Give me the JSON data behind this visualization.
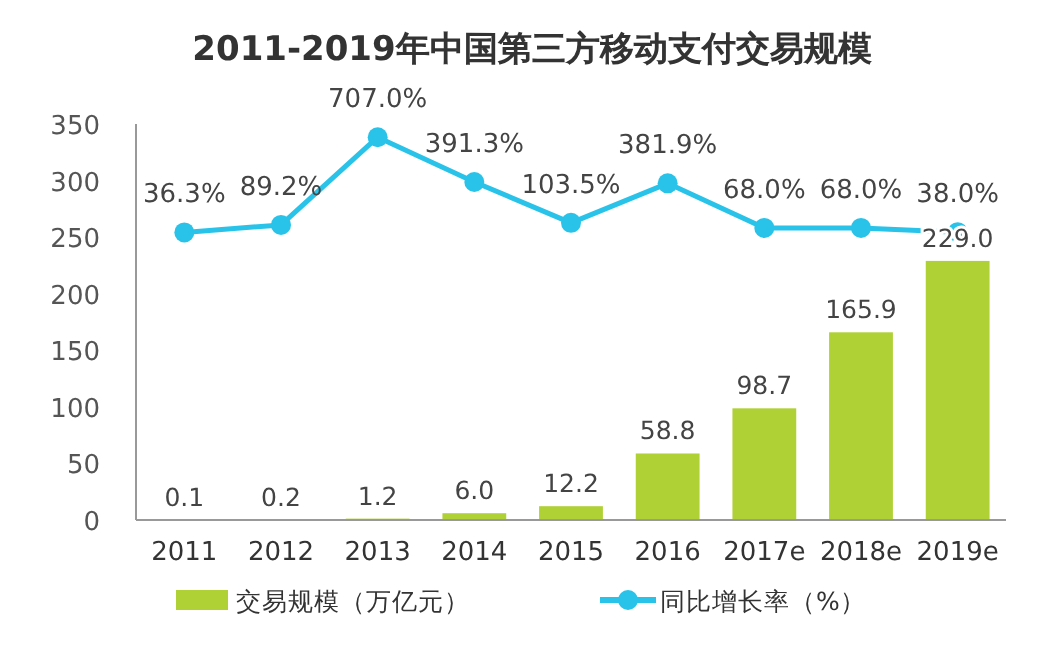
{
  "chart_data": {
    "type": "bar",
    "title": "2011-2019年中国第三方移动支付交易规模",
    "categories": [
      "2011",
      "2012",
      "2013",
      "2014",
      "2015",
      "2016",
      "2017e",
      "2018e",
      "2019e"
    ],
    "ylim": [
      0,
      350
    ],
    "yticks": [
      0,
      50,
      100,
      150,
      200,
      250,
      300,
      350
    ],
    "y2lim": [
      -1990,
      800
    ],
    "tick_labels": "y",
    "grid": false,
    "legend": "bottom",
    "series": [
      {
        "name": "交易规模（万亿元）",
        "color": "#b0d136",
        "values": [
          0.1,
          0.2,
          1.2,
          6.0,
          12.2,
          58.8,
          98.7,
          165.9,
          229.0
        ],
        "value_labels": [
          "0.1",
          "0.2",
          "1.2",
          "6.0",
          "12.2",
          "58.8",
          "98.7",
          "165.9",
          "229.0"
        ]
      },
      {
        "name": "同比增长率（%）",
        "type": "line",
        "axis": "y2",
        "marker": "circle",
        "line_style": "solid",
        "color": "#29c3ea",
        "values": [
          36.3,
          89.2,
          707.0,
          391.3,
          103.5,
          381.9,
          68.0,
          68.0,
          38.0
        ],
        "value_labels": [
          "36.3%",
          "89.2%",
          "707.0%",
          "391.3%",
          "103.5%",
          "381.9%",
          "68.0%",
          "68.0%",
          "38.0%"
        ]
      }
    ]
  }
}
